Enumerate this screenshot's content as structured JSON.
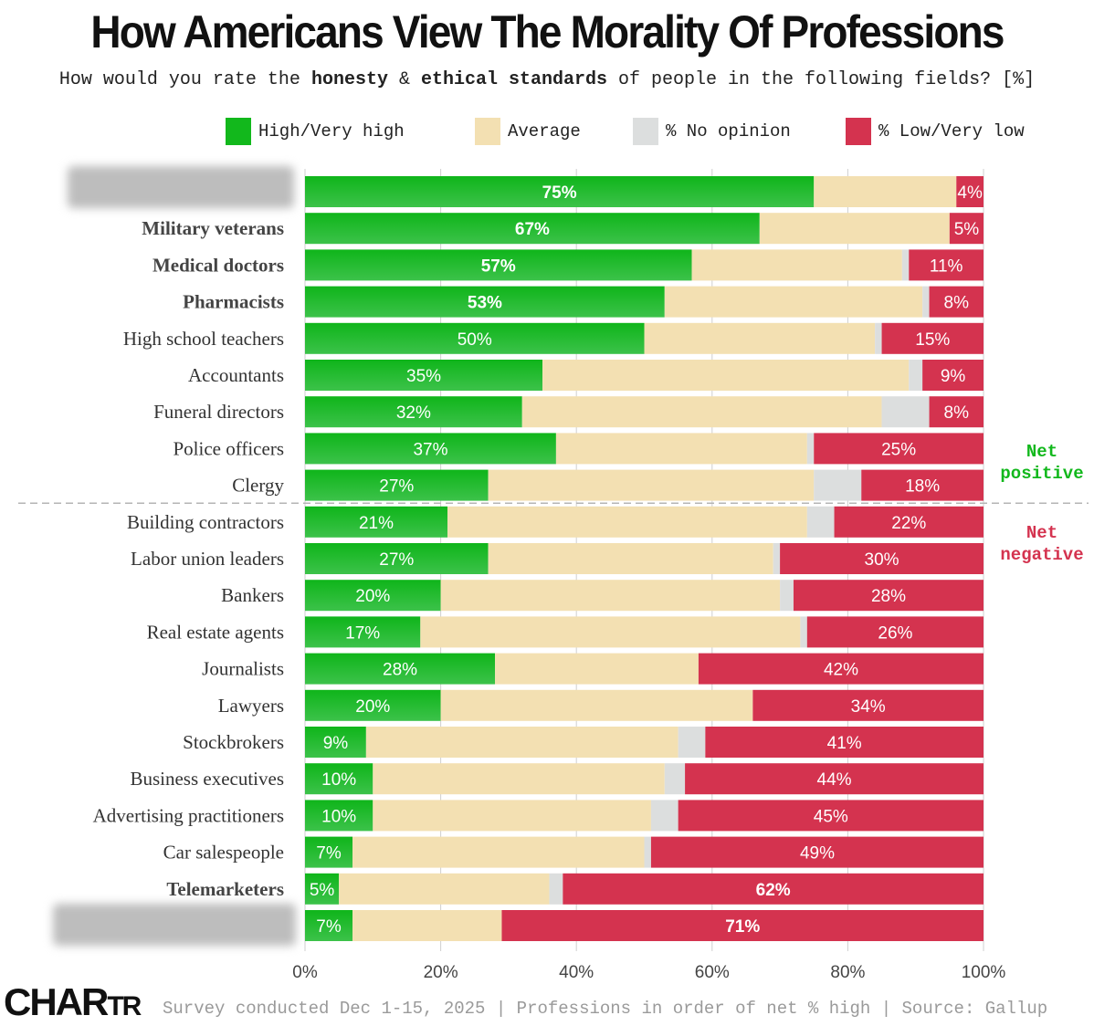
{
  "title": "How Americans View The Morality Of Professions",
  "subtitle": {
    "pre": "How would you rate the ",
    "b1": "honesty",
    "mid": " & ",
    "b2": "ethical standards",
    "post": " of people in the following fields? [%]"
  },
  "legend": [
    {
      "label": "High/Very high",
      "color": "#12b81c"
    },
    {
      "label": "Average",
      "color": "#f3e0b2"
    },
    {
      "label": "% No opinion",
      "color": "#dcdede"
    },
    {
      "label": "% Low/Very low",
      "color": "#d4334f"
    }
  ],
  "net_labels": {
    "positive": [
      "Net",
      "positive"
    ],
    "negative": [
      "Net",
      "negative"
    ]
  },
  "footer": "Survey conducted Dec 1-15, 2025 | Professions in order of net % high | Source: Gallup",
  "logo": {
    "main": "CHAR",
    "small": "TR"
  },
  "chart_data": {
    "type": "bar",
    "orientation": "horizontal",
    "stacked": true,
    "xlim": [
      0,
      100
    ],
    "x_ticks": [
      "0%",
      "20%",
      "40%",
      "60%",
      "80%",
      "100%"
    ],
    "categories": [
      "",
      "Military veterans",
      "Medical doctors",
      "Pharmacists",
      "High school teachers",
      "Accountants",
      "Funeral directors",
      "Police officers",
      "Clergy",
      "Building contractors",
      "Labor union leaders",
      "Bankers",
      "Real estate agents",
      "Journalists",
      "Lawyers",
      "Stockbrokers",
      "Business executives",
      "Advertising practitioners",
      "Car salespeople",
      "Telemarketers",
      ""
    ],
    "redacted_rows": [
      0,
      20
    ],
    "bold_rows": [
      1,
      2,
      3,
      19
    ],
    "series": [
      {
        "name": "High/Very high",
        "values": [
          75,
          67,
          57,
          53,
          50,
          35,
          32,
          37,
          27,
          21,
          27,
          20,
          17,
          28,
          20,
          9,
          10,
          10,
          7,
          5,
          7
        ]
      },
      {
        "name": "Average",
        "values": [
          21,
          28,
          31,
          38,
          34,
          54,
          53,
          37,
          48,
          53,
          42,
          50,
          56,
          30,
          46,
          46,
          43,
          41,
          43,
          31,
          22
        ]
      },
      {
        "name": "% No opinion",
        "values": [
          0,
          0,
          1,
          1,
          1,
          2,
          7,
          1,
          7,
          4,
          1,
          2,
          1,
          0,
          0,
          4,
          3,
          4,
          1,
          2,
          0
        ]
      },
      {
        "name": "% Low/Very low",
        "values": [
          4,
          5,
          11,
          8,
          15,
          9,
          8,
          25,
          18,
          22,
          30,
          28,
          26,
          42,
          34,
          41,
          44,
          45,
          49,
          62,
          71
        ]
      }
    ],
    "bold_high_labels": [
      0,
      1,
      2,
      3
    ],
    "bold_low_labels": [
      19,
      20
    ],
    "divider_after_row": 8,
    "grid": true
  }
}
